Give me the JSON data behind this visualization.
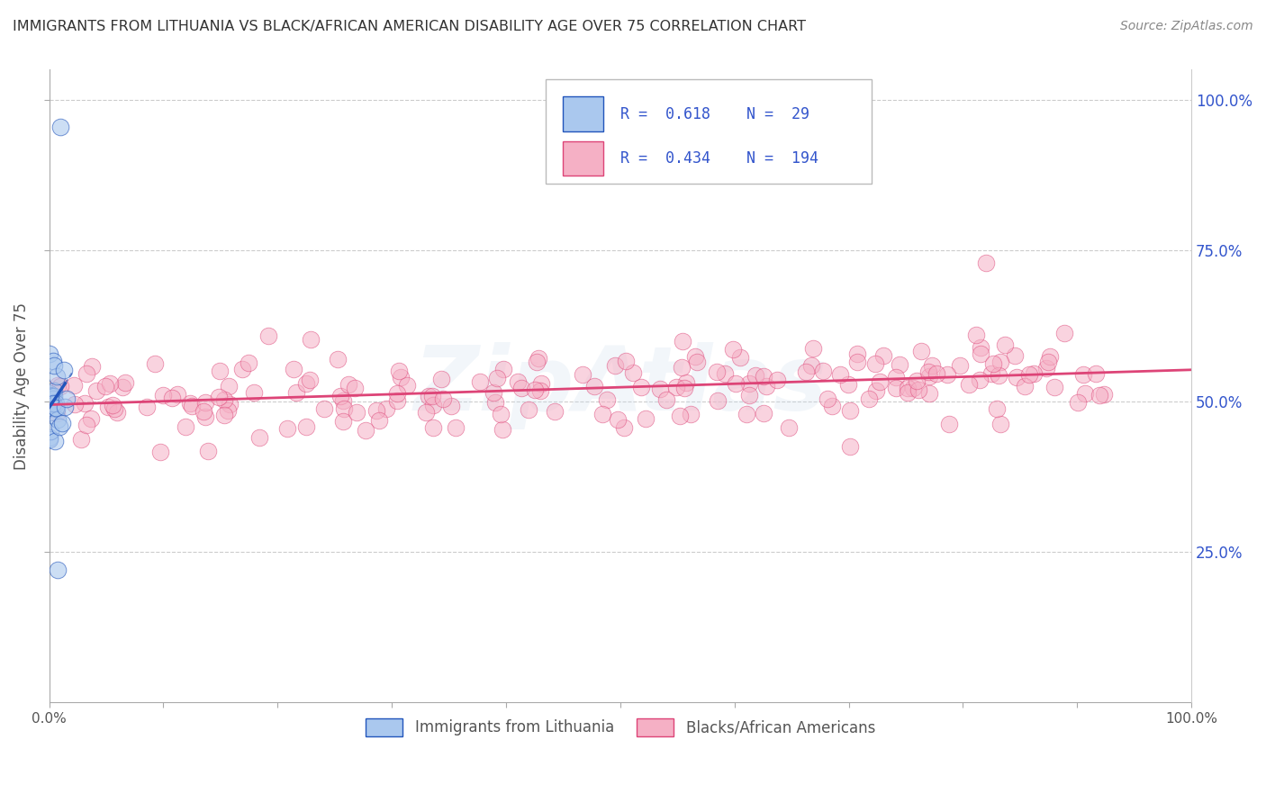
{
  "title": "IMMIGRANTS FROM LITHUANIA VS BLACK/AFRICAN AMERICAN DISABILITY AGE OVER 75 CORRELATION CHART",
  "source": "Source: ZipAtlas.com",
  "ylabel": "Disability Age Over 75",
  "xlim": [
    0.0,
    1.0
  ],
  "ylim": [
    0.0,
    1.05
  ],
  "background_color": "#ffffff",
  "grid_color": "#cccccc",
  "title_color": "#333333",
  "source_color": "#888888",
  "legend_text_color": "#3355cc",
  "scatter_blue_color": "#aac8ee",
  "scatter_pink_color": "#f5b0c5",
  "line_blue_color": "#2255bb",
  "line_pink_color": "#dd4477",
  "watermark": "ZipAtlas",
  "blue_r": 0.618,
  "blue_n": 29,
  "pink_r": 0.434,
  "pink_n": 194,
  "legend_label_blue": "Immigrants from Lithuania",
  "legend_label_pink": "Blacks/African Americans"
}
